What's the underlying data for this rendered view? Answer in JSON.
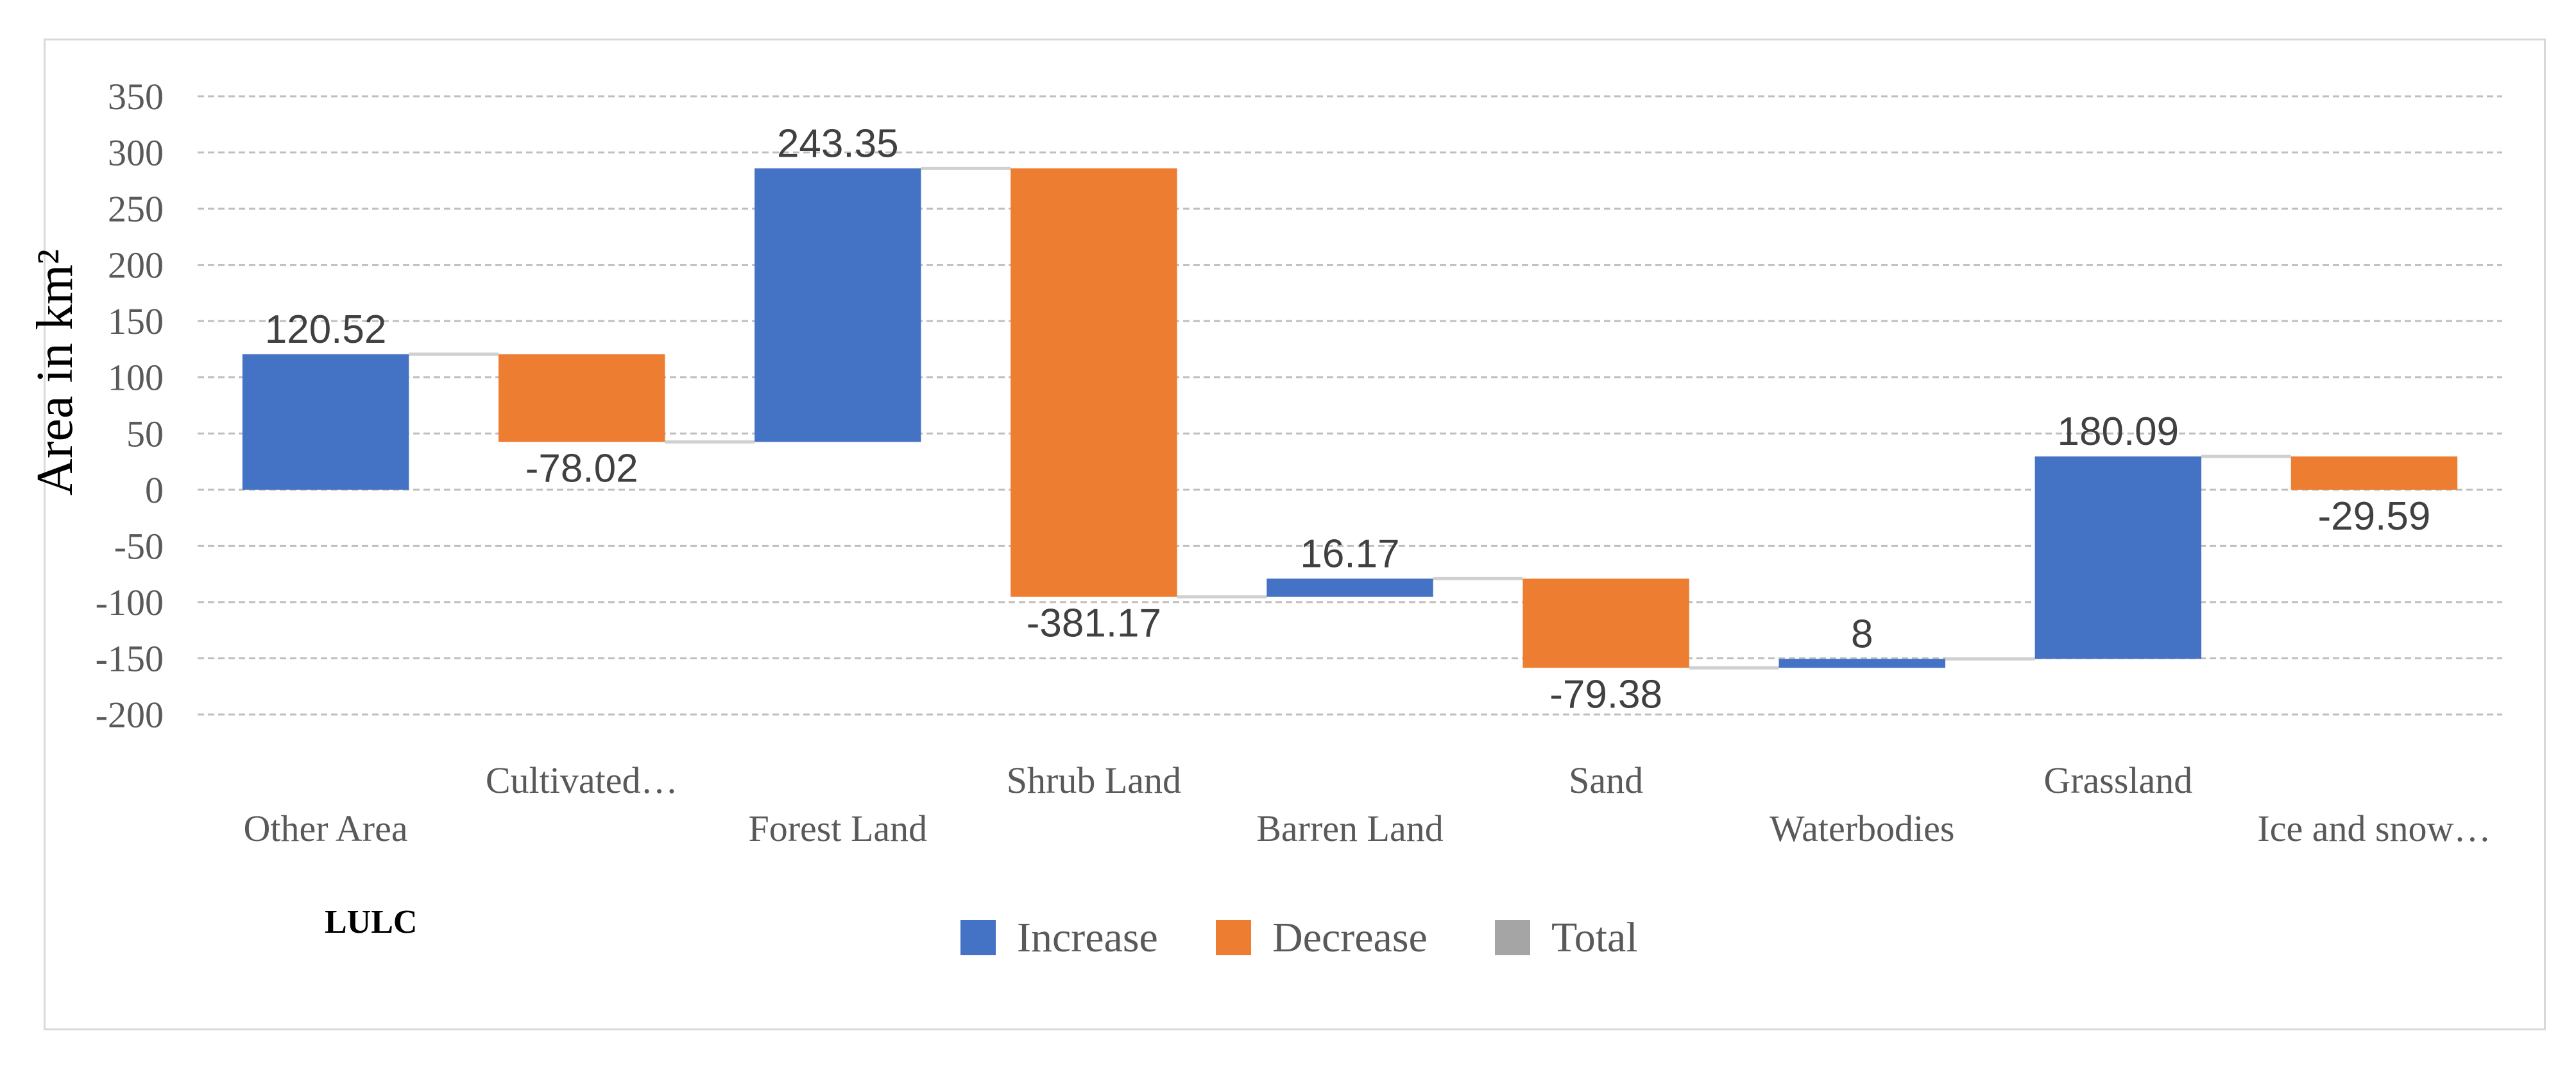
{
  "chart_data": {
    "type": "waterfall",
    "categories": [
      "Other Area",
      "Cultivated…",
      "Forest Land",
      "Shrub Land",
      "Barren Land",
      "Sand",
      "Waterbodies",
      "Grassland",
      "Ice and snow…"
    ],
    "values": [
      120.52,
      -78.02,
      243.35,
      -381.17,
      16.17,
      -79.38,
      8,
      180.09,
      -29.59
    ],
    "value_labels": [
      "120.52",
      "-78.02",
      "243.35",
      "-381.17",
      "16.17",
      "-79.38",
      "8",
      "180.09",
      "-29.59"
    ],
    "ylabel": "Area in km²",
    "xlabel": "LULC",
    "ylim": [
      -200,
      350
    ],
    "yticks": [
      350,
      300,
      250,
      200,
      150,
      100,
      50,
      0,
      -50,
      -100,
      -150,
      -200
    ],
    "grid": true,
    "legend_position": "bottom",
    "legend": [
      {
        "name": "Increase",
        "color": "#4472c4"
      },
      {
        "name": "Decrease",
        "color": "#ed7d31"
      },
      {
        "name": "Total",
        "color": "#a5a5a5"
      }
    ]
  }
}
